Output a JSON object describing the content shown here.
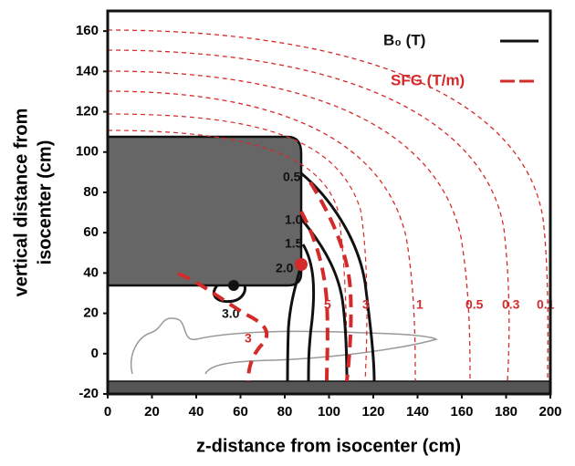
{
  "chart_data": {
    "type": "contour",
    "xlabel": "z-distance from isocenter (cm)",
    "ylabel": [
      "vertical distance from",
      "isocenter (cm)"
    ],
    "xlim": [
      0,
      200
    ],
    "ylim": [
      -20,
      170
    ],
    "xticks": [
      0,
      20,
      40,
      60,
      80,
      100,
      120,
      140,
      160,
      180,
      200
    ],
    "yticks": [
      -20,
      0,
      20,
      40,
      60,
      80,
      100,
      120,
      140,
      160
    ],
    "legend": "upper right",
    "series": [
      {
        "name": "B₀ (T)",
        "color": "#111111",
        "dashed": false,
        "levels": [
          0.5,
          {
            "value": 1.0,
            "label": "1.0"
          },
          1.5,
          {
            "value": 2.0,
            "label": "2.0"
          },
          {
            "value": 3.0,
            "label": "3.0"
          }
        ]
      },
      {
        "name": "SFG (T/m)",
        "color": "#d42a2a",
        "dashed": true,
        "levels": [
          3,
          5,
          3,
          1,
          0.5,
          0.3,
          0.1
        ]
      }
    ]
  }
}
